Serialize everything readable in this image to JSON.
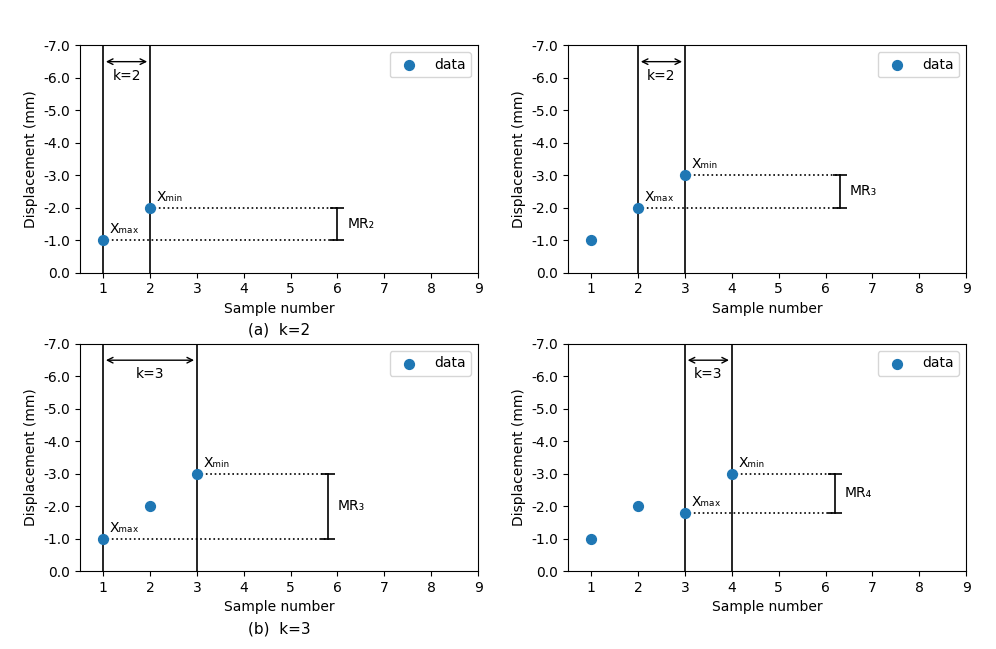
{
  "chart_data": [
    {
      "type": "scatter",
      "xlabel": "Sample number",
      "ylabel": "Displacement (mm)",
      "xlim": [
        0.5,
        9
      ],
      "ylim": [
        0.0,
        -7.0
      ],
      "xticks": [
        1,
        2,
        3,
        4,
        5,
        6,
        7,
        8,
        9
      ],
      "yticks": [
        {
          "value": 0.0,
          "label": "0.0"
        },
        {
          "value": -1.0,
          "label": "-1.0"
        },
        {
          "value": -2.0,
          "label": "-2.0"
        },
        {
          "value": -3.0,
          "label": "-3.0"
        },
        {
          "value": -4.0,
          "label": "-4.0"
        },
        {
          "value": -5.0,
          "label": "-5.0"
        },
        {
          "value": -6.0,
          "label": "-6.0"
        },
        {
          "value": -7.0,
          "label": "-7.0"
        }
      ],
      "legend": "upper right",
      "series": [
        {
          "name": "data",
          "x": [
            1,
            2
          ],
          "values": [
            -1,
            -2
          ]
        }
      ],
      "vlines": [
        1,
        2
      ],
      "hlines": [
        {
          "y": -1,
          "x_start": 1,
          "x_end": 6
        },
        {
          "y": -2,
          "x_start": 2,
          "x_end": 6
        }
      ],
      "bracket": {
        "x": 6,
        "y1": -1,
        "y2": -2,
        "label": "MR₂"
      },
      "annotations": [
        {
          "text": "Xₘₐₓ",
          "x": 1,
          "y": -1
        },
        {
          "text": "Xₘᵢₙ",
          "x": 2,
          "y": -2
        }
      ],
      "range_arrow": {
        "x1": 1,
        "x2": 2,
        "y": -6.5,
        "label": "k=2"
      },
      "caption": "(a)  k=2"
    },
    {
      "type": "scatter",
      "xlabel": "Sample number",
      "ylabel": "Displacement (mm)",
      "xlim": [
        0.5,
        9
      ],
      "ylim": [
        0.0,
        -7.0
      ],
      "xticks": [
        1,
        2,
        3,
        4,
        5,
        6,
        7,
        8,
        9
      ],
      "yticks": [
        {
          "value": 0.0,
          "label": "0.0"
        },
        {
          "value": -1.0,
          "label": "-1.0"
        },
        {
          "value": -2.0,
          "label": "-2.0"
        },
        {
          "value": -3.0,
          "label": "-3.0"
        },
        {
          "value": -4.0,
          "label": "-4.0"
        },
        {
          "value": -5.0,
          "label": "-5.0"
        },
        {
          "value": -6.0,
          "label": "-6.0"
        },
        {
          "value": -7.0,
          "label": "-7.0"
        }
      ],
      "legend": "upper right",
      "series": [
        {
          "name": "data",
          "x": [
            1,
            2,
            3
          ],
          "values": [
            -1,
            -2,
            -3
          ]
        }
      ],
      "vlines": [
        2,
        3
      ],
      "hlines": [
        {
          "y": -2,
          "x_start": 2,
          "x_end": 6.3
        },
        {
          "y": -3,
          "x_start": 3,
          "x_end": 6.3
        }
      ],
      "bracket": {
        "x": 6.3,
        "y1": -2,
        "y2": -3,
        "label": "MR₃"
      },
      "annotations": [
        {
          "text": "Xₘₐₓ",
          "x": 2,
          "y": -2
        },
        {
          "text": "Xₘᵢₙ",
          "x": 3,
          "y": -3
        }
      ],
      "range_arrow": {
        "x1": 2,
        "x2": 3,
        "y": -6.5,
        "label": "k=2"
      }
    },
    {
      "type": "scatter",
      "xlabel": "Sample number",
      "ylabel": "Displacement (mm)",
      "xlim": [
        0.5,
        9
      ],
      "ylim": [
        0.0,
        -7.0
      ],
      "xticks": [
        1,
        2,
        3,
        4,
        5,
        6,
        7,
        8,
        9
      ],
      "yticks": [
        {
          "value": 0.0,
          "label": "0.0"
        },
        {
          "value": -1.0,
          "label": "-1.0"
        },
        {
          "value": -2.0,
          "label": "-2.0"
        },
        {
          "value": -3.0,
          "label": "-3.0"
        },
        {
          "value": -4.0,
          "label": "-4.0"
        },
        {
          "value": -5.0,
          "label": "-5.0"
        },
        {
          "value": -6.0,
          "label": "-6.0"
        },
        {
          "value": -7.0,
          "label": "-7.0"
        }
      ],
      "legend": "upper right",
      "series": [
        {
          "name": "data",
          "x": [
            1,
            2,
            3
          ],
          "values": [
            -1,
            -2,
            -3
          ]
        }
      ],
      "vlines": [
        1,
        3
      ],
      "hlines": [
        {
          "y": -1,
          "x_start": 1,
          "x_end": 5.8
        },
        {
          "y": -3,
          "x_start": 3,
          "x_end": 5.8
        }
      ],
      "bracket": {
        "x": 5.8,
        "y1": -1,
        "y2": -3,
        "label": "MR₃"
      },
      "annotations": [
        {
          "text": "Xₘₐₓ",
          "x": 1,
          "y": -1
        },
        {
          "text": "Xₘᵢₙ",
          "x": 3,
          "y": -3
        }
      ],
      "range_arrow": {
        "x1": 1,
        "x2": 3,
        "y": -6.5,
        "label": "k=3"
      },
      "caption": "(b)  k=3"
    },
    {
      "type": "scatter",
      "xlabel": "Sample number",
      "ylabel": "Displacement (mm)",
      "xlim": [
        0.5,
        9
      ],
      "ylim": [
        0.0,
        -7.0
      ],
      "xticks": [
        1,
        2,
        3,
        4,
        5,
        6,
        7,
        8,
        9
      ],
      "yticks": [
        {
          "value": 0.0,
          "label": "0.0"
        },
        {
          "value": -1.0,
          "label": "-1.0"
        },
        {
          "value": -2.0,
          "label": "-2.0"
        },
        {
          "value": -3.0,
          "label": "-3.0"
        },
        {
          "value": -4.0,
          "label": "-4.0"
        },
        {
          "value": -5.0,
          "label": "-5.0"
        },
        {
          "value": -6.0,
          "label": "-6.0"
        },
        {
          "value": -7.0,
          "label": "-7.0"
        }
      ],
      "legend": "upper right",
      "series": [
        {
          "name": "data",
          "x": [
            1,
            2,
            3,
            4
          ],
          "values": [
            -1,
            -2,
            -1.8,
            -3
          ]
        }
      ],
      "vlines": [
        3,
        4
      ],
      "hlines": [
        {
          "y": -1.8,
          "x_start": 3,
          "x_end": 6.2
        },
        {
          "y": -3,
          "x_start": 4,
          "x_end": 6.2
        }
      ],
      "bracket": {
        "x": 6.2,
        "y1": -1.8,
        "y2": -3,
        "label": "MR₄"
      },
      "annotations": [
        {
          "text": "Xₘₐₓ",
          "x": 3,
          "y": -1.8
        },
        {
          "text": "Xₘᵢₙ",
          "x": 4,
          "y": -3
        }
      ],
      "range_arrow": {
        "x1": 3,
        "x2": 4,
        "y": -6.5,
        "label": "k=3"
      }
    }
  ]
}
